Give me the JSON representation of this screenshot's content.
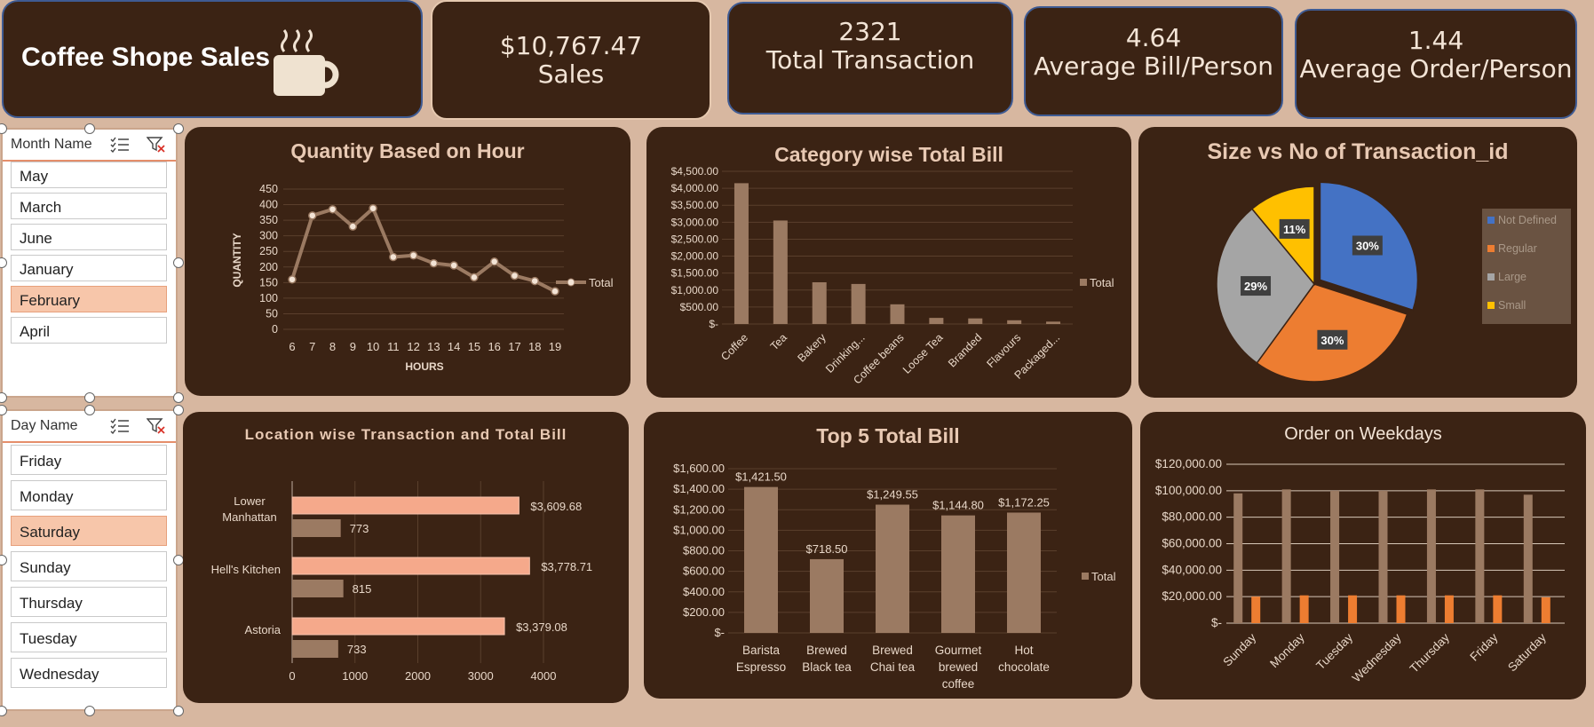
{
  "header": {
    "title": "Coffee Shope Sales",
    "kpis": [
      {
        "value": "$10,767.47",
        "label": "Sales"
      },
      {
        "value": "2321",
        "label": "Total Transaction"
      },
      {
        "value": "4.64",
        "label": "Average Bill/Person"
      },
      {
        "value": "1.44",
        "label": "Average Order/Person"
      }
    ]
  },
  "slicers": {
    "month": {
      "title": "Month Name",
      "items": [
        "May",
        "March",
        "June",
        "January",
        "February",
        "April"
      ],
      "selected": "February"
    },
    "day": {
      "title": "Day Name",
      "items": [
        "Friday",
        "Monday",
        "Saturday",
        "Sunday",
        "Thursday",
        "Tuesday",
        "Wednesday"
      ],
      "selected": "Saturday"
    }
  },
  "colors": {
    "background": "#d7b7a0",
    "card": "#3b2314",
    "bar_brown": "#9b7a62",
    "bar_salmon": "#f5a98b",
    "orange": "#ed7d31",
    "blue": "#4472c4",
    "gray": "#a5a5a5",
    "yellow": "#ffc000"
  },
  "chart_data": [
    {
      "id": "hour",
      "type": "line",
      "title": "Quantity Based on Hour",
      "xlabel": "HOURS",
      "ylabel": "QUANTITY",
      "x": [
        6,
        7,
        8,
        9,
        10,
        11,
        12,
        13,
        14,
        15,
        16,
        17,
        18,
        19
      ],
      "series": [
        {
          "name": "Total",
          "values": [
            160,
            365,
            385,
            330,
            388,
            232,
            237,
            212,
            205,
            167,
            217,
            172,
            155,
            122
          ]
        }
      ],
      "ylim": [
        0,
        450
      ],
      "yticks": [
        0,
        50,
        100,
        150,
        200,
        250,
        300,
        350,
        400,
        450
      ],
      "legend": "right",
      "grid": true
    },
    {
      "id": "category",
      "type": "bar",
      "title": "Category wise Total Bill",
      "categories": [
        "Coffee",
        "Tea",
        "Bakery",
        "Drinking...",
        "Coffee beans",
        "Loose Tea",
        "Branded",
        "Flavours",
        "Packaged..."
      ],
      "series": [
        {
          "name": "Total",
          "values": [
            4150,
            3050,
            1230,
            1180,
            580,
            180,
            165,
            110,
            70
          ]
        }
      ],
      "ylim": [
        0,
        4500
      ],
      "ytick_labels": [
        "$-",
        "$500.00",
        "$1,000.00",
        "$1,500.00",
        "$2,000.00",
        "$2,500.00",
        "$3,000.00",
        "$3,500.00",
        "$4,000.00",
        "$4,500.00"
      ],
      "legend": "right",
      "grid": true
    },
    {
      "id": "size",
      "type": "pie",
      "title": "Size vs  No of Transaction_id",
      "categories": [
        "Not Defined",
        "Regular",
        "Large",
        "Small"
      ],
      "values": [
        30,
        30,
        29,
        11
      ],
      "labels": [
        "30%",
        "30%",
        "29%",
        "11%"
      ],
      "legend": "right"
    },
    {
      "id": "location",
      "type": "bar",
      "orientation": "horizontal",
      "title": "Location wise Transaction and Total Bill",
      "categories": [
        "Lower Manhattan",
        "Hell's Kitchen",
        "Astoria"
      ],
      "series": [
        {
          "name": "Total Bill",
          "values": [
            3609.68,
            3778.71,
            3379.08
          ],
          "labels": [
            "$3,609.68",
            "$3,778.71",
            "$3,379.08"
          ]
        },
        {
          "name": "Transactions",
          "values": [
            773,
            815,
            733
          ],
          "labels": [
            "773",
            "815",
            "733"
          ]
        }
      ],
      "xlim": [
        0,
        4000
      ],
      "xticks": [
        0,
        1000,
        2000,
        3000,
        4000
      ],
      "grid": true
    },
    {
      "id": "top5",
      "type": "bar",
      "title": "Top 5 Total Bill",
      "categories": [
        "Barista Espresso",
        "Brewed Black tea",
        "Brewed Chai tea",
        "Gourmet brewed coffee",
        "Hot chocolate"
      ],
      "series": [
        {
          "name": "Total",
          "values": [
            1421.5,
            718.5,
            1249.55,
            1144.8,
            1172.25
          ],
          "labels": [
            "$1,421.50",
            "$718.50",
            "$1,249.55",
            "$1,144.80",
            "$1,172.25"
          ]
        }
      ],
      "ylim": [
        0,
        1600
      ],
      "ytick_labels": [
        "$-",
        "$200.00",
        "$400.00",
        "$600.00",
        "$800.00",
        "$1,000.00",
        "$1,200.00",
        "$1,400.00",
        "$1,600.00"
      ],
      "legend": "right",
      "grid": true
    },
    {
      "id": "weekday",
      "type": "bar",
      "title": "Order on Weekdays",
      "categories": [
        "Sunday",
        "Monday",
        "Tuesday",
        "Wednesday",
        "Thursday",
        "Friday",
        "Saturday"
      ],
      "series": [
        {
          "values": [
            98000,
            101000,
            100000,
            100000,
            101000,
            101000,
            97000
          ]
        },
        {
          "values": [
            20000,
            21000,
            21000,
            21000,
            21000,
            21000,
            19500
          ]
        }
      ],
      "ylim": [
        0,
        120000
      ],
      "ytick_labels": [
        "$-",
        "$20,000.00",
        "$40,000.00",
        "$60,000.00",
        "$80,000.00",
        "$100,000.00",
        "$120,000.00"
      ],
      "grid": true
    }
  ]
}
